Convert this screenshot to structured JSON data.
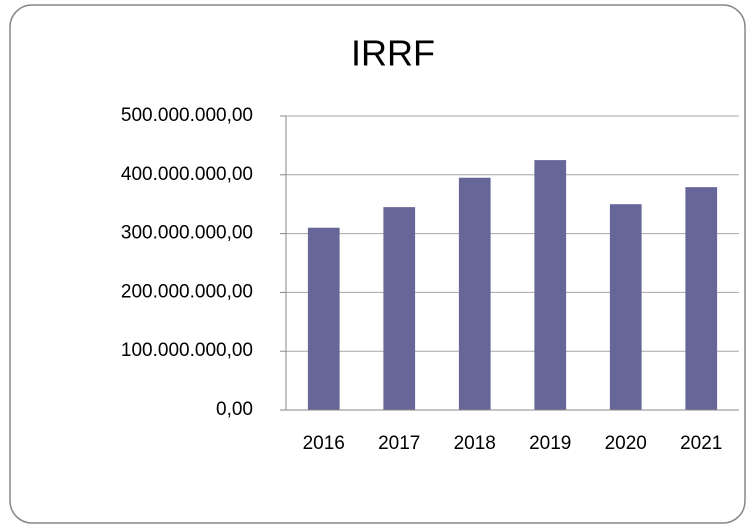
{
  "chart_data": {
    "type": "bar",
    "title": "IRRF",
    "categories": [
      "2016",
      "2017",
      "2018",
      "2019",
      "2020",
      "2021"
    ],
    "values": [
      310000000,
      345000000,
      395000000,
      425000000,
      350000000,
      379000000
    ],
    "color": "#666699",
    "ylim": [
      0,
      500000000
    ],
    "yticks": [
      {
        "value": 0,
        "label": "0,00"
      },
      {
        "value": 100000000,
        "label": "100.000.000,00"
      },
      {
        "value": 200000000,
        "label": "200.000.000,00"
      },
      {
        "value": 300000000,
        "label": "300.000.000,00"
      },
      {
        "value": 400000000,
        "label": "400.000.000,00"
      },
      {
        "value": 500000000,
        "label": "500.000.000,00"
      }
    ],
    "grid": true
  }
}
